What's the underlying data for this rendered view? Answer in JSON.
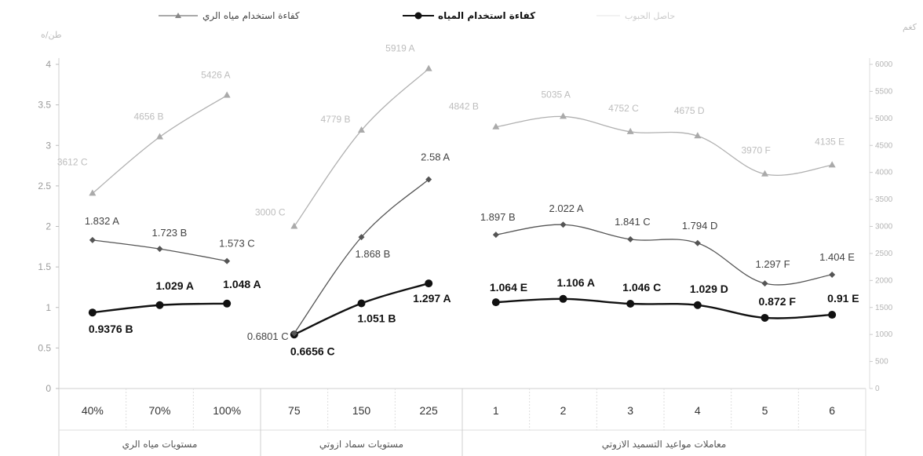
{
  "chart_data": {
    "type": "line",
    "title": "",
    "y_left": {
      "min": 0,
      "max": 4,
      "ticks": [
        "0",
        "0.5",
        "1",
        "1.5",
        "2",
        "2.5",
        "3",
        "3.5",
        "4"
      ]
    },
    "y_right": {
      "min": 0,
      "max": 6000,
      "ticks": [
        "0",
        "500",
        "1000",
        "1500",
        "2000",
        "2500",
        "3000",
        "3500",
        "4000",
        "4500",
        "5000",
        "5500",
        "6000"
      ]
    },
    "groups": [
      {
        "label": "مستويات مياه الري",
        "categories": [
          "40%",
          "70%",
          "100%"
        ]
      },
      {
        "label": "مستويات سماد ازوتي",
        "categories": [
          "75",
          "150",
          "225"
        ]
      },
      {
        "label": "معاملات مواعيد التسميد الازوتي",
        "categories": [
          "1",
          "2",
          "3",
          "4",
          "5",
          "6"
        ]
      }
    ],
    "legend": [
      {
        "label": "كفاءة استخدام مياه الري"
      },
      {
        "label": "كفاءة استخدام المياه"
      },
      {
        "label": "حاصل الحبوب"
      }
    ],
    "series": [
      {
        "name": "كفاءة استخدام المياه",
        "axis": "left",
        "color": "#111111",
        "segments": [
          {
            "values": [
              0.9376,
              1.029,
              1.048
            ],
            "labels": [
              "0.9376  B",
              "1.029  A",
              "1.048  A"
            ]
          },
          {
            "values": [
              0.6656,
              1.051,
              1.297
            ],
            "labels": [
              "0.6656 C",
              "1.051  B",
              "1.297  A"
            ]
          },
          {
            "values": [
              1.064,
              1.106,
              1.046,
              1.029,
              0.872,
              0.91
            ],
            "labels": [
              "1.064 E",
              "1.106 A",
              "1.046 C",
              "1.029 D",
              "0.872 F",
              "0.91 E"
            ]
          }
        ]
      },
      {
        "name": "كفاءة استخدام مياه الري",
        "axis": "left",
        "color": "#555555",
        "segments": [
          {
            "values": [
              1.832,
              1.723,
              1.573
            ],
            "labels": [
              "1.832  A",
              "1.723  B",
              "1.573  C"
            ]
          },
          {
            "values": [
              0.6801,
              1.868,
              2.58
            ],
            "labels": [
              "0.6801 C",
              "1.868  B",
              "2.58  A"
            ]
          },
          {
            "values": [
              1.897,
              2.022,
              1.841,
              1.794,
              1.297,
              1.404
            ],
            "labels": [
              "1.897 B",
              "2.022 A",
              "1.841 C",
              "1.794 D",
              "1.297 F",
              "1.404 E"
            ]
          }
        ]
      },
      {
        "name": "حاصل الحبوب",
        "axis": "right",
        "color": "#b0b0b0",
        "segments": [
          {
            "values": [
              3612,
              4656,
              5426
            ],
            "labels": [
              "3612 C",
              "4656 B",
              "5426 A"
            ]
          },
          {
            "values": [
              3000,
              4779,
              5919
            ],
            "labels": [
              "3000 C",
              "4779 B",
              "5919 A"
            ]
          },
          {
            "values": [
              4842,
              5035,
              4752,
              4675,
              3970,
              4135
            ],
            "labels": [
              "4842 B",
              "5035 A",
              "4752 C",
              "4675 D",
              "3970 F",
              "4135 E"
            ]
          }
        ]
      }
    ]
  }
}
